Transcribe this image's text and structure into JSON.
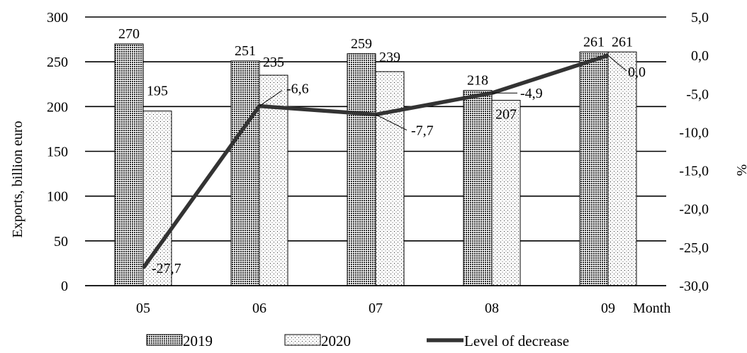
{
  "chart_data": {
    "type": "bar",
    "categories": [
      "05",
      "06",
      "07",
      "08",
      "09"
    ],
    "x_axis_suffix": "Month",
    "series": [
      {
        "name": "2019",
        "type": "bar",
        "axis": "left",
        "values": [
          270,
          251,
          259,
          218,
          261
        ],
        "labels": [
          "270",
          "251",
          "259",
          "218",
          "261"
        ]
      },
      {
        "name": "2020",
        "type": "bar",
        "axis": "left",
        "values": [
          195,
          235,
          239,
          207,
          261
        ],
        "labels": [
          "195",
          "235",
          "239",
          "207",
          "261"
        ]
      },
      {
        "name": "Level of decrease",
        "type": "line",
        "axis": "right",
        "values": [
          -27.7,
          -6.6,
          -7.7,
          -4.9,
          0.0
        ],
        "labels": [
          "-27,7",
          "-6,6",
          "-7,7",
          "-4,9",
          "0,0"
        ]
      }
    ],
    "y_left": {
      "label": "Exports, billion euro",
      "min": 0,
      "max": 300,
      "ticks": [
        "0",
        "50",
        "100",
        "150",
        "200",
        "250",
        "300"
      ]
    },
    "y_right": {
      "label": "%",
      "min": -30,
      "max": 5,
      "ticks": [
        "-30,0",
        "-25,0",
        "-20,0",
        "-15,0",
        "-10,0",
        "-5,0",
        "0,0",
        "5,0"
      ]
    },
    "grid": true,
    "legend_position": "bottom",
    "colors": {
      "line": "#333333",
      "grid": "#000000",
      "bar_border": "#000000"
    }
  }
}
